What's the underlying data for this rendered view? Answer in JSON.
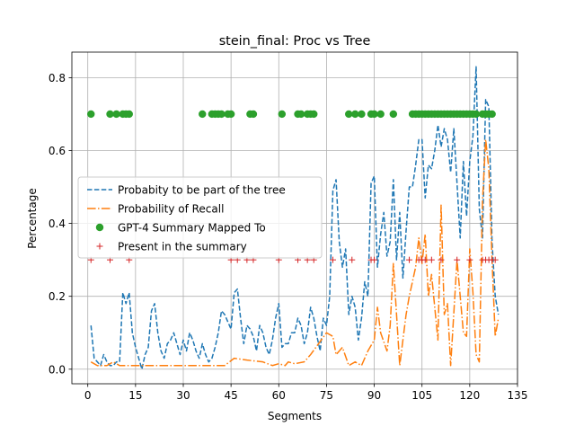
{
  "chart_data": {
    "type": "line",
    "title": "stein_final: Proc vs Tree",
    "xlabel": "Segments",
    "ylabel": "Percentage",
    "xlim": [
      -5,
      135
    ],
    "ylim": [
      -0.04,
      0.87
    ],
    "xticks": [
      "0",
      "15",
      "30",
      "45",
      "60",
      "75",
      "90",
      "105",
      "120",
      "135"
    ],
    "yticks": [
      "0.0",
      "0.2",
      "0.4",
      "0.6",
      "0.8"
    ],
    "grid": true,
    "legend_position": "center-left",
    "series": [
      {
        "name": "Probabity to be part of the tree",
        "style": "dashed",
        "color": "#1f77b4",
        "x": [
          1,
          2,
          3,
          4,
          5,
          6,
          7,
          8,
          9,
          10,
          11,
          12,
          13,
          14,
          15,
          16,
          17,
          18,
          19,
          20,
          21,
          22,
          23,
          24,
          25,
          26,
          27,
          28,
          29,
          30,
          31,
          32,
          33,
          34,
          35,
          36,
          37,
          38,
          39,
          40,
          41,
          42,
          43,
          44,
          45,
          46,
          47,
          48,
          49,
          50,
          51,
          52,
          53,
          54,
          55,
          56,
          57,
          58,
          59,
          60,
          61,
          62,
          63,
          64,
          65,
          66,
          67,
          68,
          69,
          70,
          71,
          72,
          73,
          74,
          75,
          76,
          77,
          78,
          79,
          80,
          81,
          82,
          83,
          84,
          85,
          86,
          87,
          88,
          89,
          90,
          91,
          92,
          93,
          94,
          95,
          96,
          97,
          98,
          99,
          100,
          101,
          102,
          103,
          104,
          105,
          106,
          107,
          108,
          109,
          110,
          111,
          112,
          113,
          114,
          115,
          116,
          117,
          118,
          119,
          120,
          121,
          122,
          123,
          124,
          125,
          126,
          127,
          128,
          129
        ],
        "y": [
          0.12,
          0.03,
          0.02,
          0.01,
          0.04,
          0.02,
          0.01,
          0.01,
          0.02,
          0.02,
          0.21,
          0.18,
          0.21,
          0.1,
          0.06,
          0.03,
          0.0,
          0.04,
          0.06,
          0.16,
          0.18,
          0.1,
          0.05,
          0.03,
          0.07,
          0.08,
          0.1,
          0.07,
          0.04,
          0.08,
          0.05,
          0.1,
          0.08,
          0.05,
          0.03,
          0.07,
          0.04,
          0.02,
          0.03,
          0.06,
          0.1,
          0.16,
          0.15,
          0.13,
          0.11,
          0.21,
          0.22,
          0.14,
          0.07,
          0.12,
          0.11,
          0.09,
          0.05,
          0.12,
          0.1,
          0.06,
          0.04,
          0.08,
          0.14,
          0.18,
          0.06,
          0.07,
          0.07,
          0.1,
          0.1,
          0.14,
          0.12,
          0.07,
          0.1,
          0.17,
          0.14,
          0.09,
          0.05,
          0.14,
          0.12,
          0.2,
          0.49,
          0.52,
          0.35,
          0.28,
          0.33,
          0.15,
          0.2,
          0.17,
          0.08,
          0.14,
          0.24,
          0.2,
          0.51,
          0.53,
          0.28,
          0.37,
          0.43,
          0.31,
          0.35,
          0.52,
          0.3,
          0.43,
          0.25,
          0.38,
          0.5,
          0.5,
          0.56,
          0.63,
          0.63,
          0.47,
          0.56,
          0.55,
          0.6,
          0.67,
          0.61,
          0.66,
          0.63,
          0.54,
          0.66,
          0.51,
          0.36,
          0.57,
          0.42,
          0.57,
          0.64,
          0.83,
          0.44,
          0.36,
          0.74,
          0.72,
          0.35,
          0.2,
          0.15
        ]
      },
      {
        "name": "Probability of Recall",
        "style": "dashdot",
        "color": "#ff7f0e",
        "x": [
          1,
          3,
          6,
          8,
          10,
          15,
          20,
          25,
          30,
          35,
          40,
          43,
          46,
          50,
          55,
          58,
          60,
          62,
          63,
          65,
          68,
          70,
          75,
          77,
          78,
          80,
          82,
          84,
          86,
          88,
          90,
          91,
          92,
          94,
          95,
          96,
          98,
          100,
          101,
          103,
          104,
          105,
          106,
          107,
          108,
          110,
          111,
          112,
          113,
          114,
          116,
          118,
          119,
          120,
          121,
          122,
          123,
          124,
          125,
          126,
          127,
          128,
          129
        ],
        "y": [
          0.02,
          0.01,
          0.01,
          0.02,
          0.01,
          0.01,
          0.01,
          0.01,
          0.01,
          0.01,
          0.01,
          0.01,
          0.03,
          0.025,
          0.02,
          0.01,
          0.015,
          0.01,
          0.02,
          0.015,
          0.02,
          0.04,
          0.1,
          0.09,
          0.04,
          0.06,
          0.01,
          0.02,
          0.01,
          0.05,
          0.08,
          0.17,
          0.1,
          0.05,
          0.12,
          0.29,
          0.01,
          0.15,
          0.2,
          0.28,
          0.36,
          0.29,
          0.37,
          0.2,
          0.26,
          0.08,
          0.45,
          0.15,
          0.18,
          0.01,
          0.3,
          0.1,
          0.09,
          0.33,
          0.21,
          0.04,
          0.02,
          0.46,
          0.63,
          0.55,
          0.3,
          0.09,
          0.14
        ]
      },
      {
        "name": "GPT-4 Summary Mapped To",
        "style": "marker-circle",
        "color": "#2ca02c",
        "x": [
          1,
          7,
          9,
          11,
          12,
          13,
          36,
          39,
          40,
          41,
          42,
          44,
          45,
          51,
          52,
          61,
          66,
          67,
          69,
          70,
          71,
          82,
          84,
          86,
          89,
          90,
          92,
          96,
          102,
          103,
          104,
          105,
          106,
          107,
          108,
          109,
          110,
          111,
          112,
          113,
          114,
          115,
          116,
          117,
          118,
          119,
          120,
          121,
          122,
          124,
          125,
          126,
          127
        ],
        "y": [
          0.7,
          0.7,
          0.7,
          0.7,
          0.7,
          0.7,
          0.7,
          0.7,
          0.7,
          0.7,
          0.7,
          0.7,
          0.7,
          0.7,
          0.7,
          0.7,
          0.7,
          0.7,
          0.7,
          0.7,
          0.7,
          0.7,
          0.7,
          0.7,
          0.7,
          0.7,
          0.7,
          0.7,
          0.7,
          0.7,
          0.7,
          0.7,
          0.7,
          0.7,
          0.7,
          0.7,
          0.7,
          0.7,
          0.7,
          0.7,
          0.7,
          0.7,
          0.7,
          0.7,
          0.7,
          0.7,
          0.7,
          0.7,
          0.7,
          0.7,
          0.7,
          0.7,
          0.7
        ]
      },
      {
        "name": "Present in the summary",
        "style": "marker-plus",
        "color": "#d62728",
        "x": [
          1,
          7,
          13,
          45,
          47,
          50,
          52,
          60,
          66,
          69,
          71,
          77,
          83,
          89,
          90,
          101,
          104,
          105,
          106,
          108,
          111,
          116,
          120,
          124,
          125,
          126,
          127,
          128
        ],
        "y": [
          0.3,
          0.3,
          0.3,
          0.3,
          0.3,
          0.3,
          0.3,
          0.3,
          0.3,
          0.3,
          0.3,
          0.3,
          0.3,
          0.3,
          0.3,
          0.3,
          0.3,
          0.3,
          0.3,
          0.3,
          0.3,
          0.3,
          0.3,
          0.3,
          0.3,
          0.3,
          0.3,
          0.3
        ]
      }
    ]
  }
}
